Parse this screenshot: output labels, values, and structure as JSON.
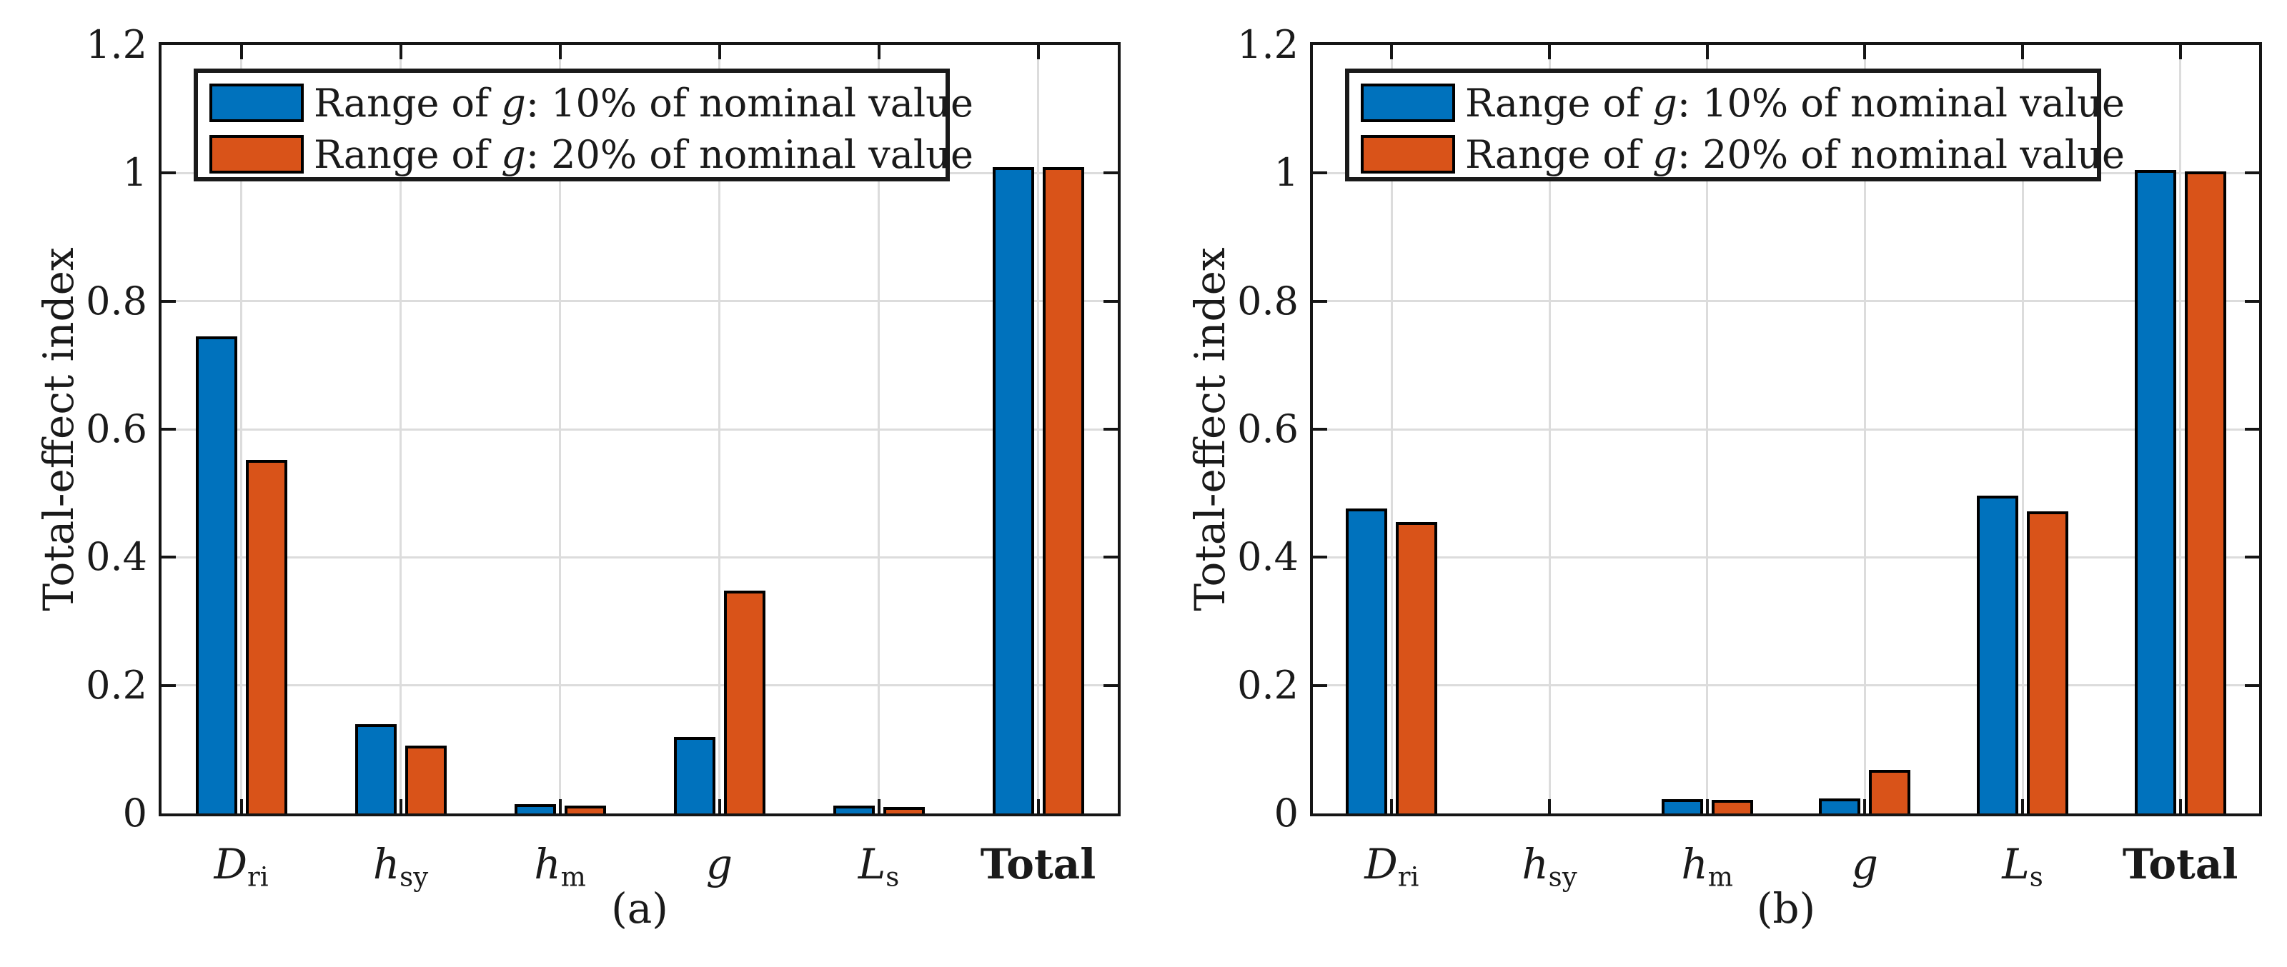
{
  "style": {
    "series_colors": [
      "#0072BD",
      "#D95319"
    ],
    "grid_color": "#DCDCDC",
    "axis_color": "#151515",
    "text_color": "#1A1A1A",
    "background": "#FFFFFF"
  },
  "legend": {
    "items": [
      {
        "swatch_color": "#0072BD",
        "label": "Range of g: 10% of nominal value",
        "segments": [
          {
            "t": "Range of "
          },
          {
            "t": "g",
            "italic": true
          },
          {
            "t": ": 10% of nominal value"
          }
        ]
      },
      {
        "swatch_color": "#D95319",
        "label": "Range of g: 20% of nominal value",
        "segments": [
          {
            "t": "Range of "
          },
          {
            "t": "g",
            "italic": true
          },
          {
            "t": ": 20% of nominal value"
          }
        ]
      }
    ]
  },
  "category_labels": [
    {
      "plain": "D_ri",
      "segments": [
        {
          "t": "D",
          "italic": true
        },
        {
          "t": "ri",
          "sub": true
        }
      ]
    },
    {
      "plain": "h_sy",
      "segments": [
        {
          "t": "h",
          "italic": true
        },
        {
          "t": "sy",
          "sub": true
        }
      ]
    },
    {
      "plain": "h_m",
      "segments": [
        {
          "t": "h",
          "italic": true
        },
        {
          "t": "m",
          "sub": true
        }
      ]
    },
    {
      "plain": "g",
      "segments": [
        {
          "t": "g",
          "italic": true
        }
      ]
    },
    {
      "plain": "L_s",
      "segments": [
        {
          "t": "L",
          "italic": true
        },
        {
          "t": "s",
          "sub": true
        }
      ]
    },
    {
      "plain": "Total",
      "segments": [
        {
          "t": "Total",
          "bold": true
        }
      ]
    }
  ],
  "chart_data": [
    {
      "type": "bar",
      "panel_label": "(a)",
      "title": "",
      "ylabel": "Total-effect index",
      "xlabel": "",
      "categories": [
        "D_ri",
        "h_sy",
        "h_m",
        "g",
        "L_s",
        "Total"
      ],
      "series": [
        {
          "name": "Range of g: 10% of nominal value",
          "color": "#0072BD",
          "values": [
            0.74,
            0.135,
            0.01,
            0.115,
            0.008,
            1.005
          ]
        },
        {
          "name": "Range of g: 20% of nominal value",
          "color": "#D95319",
          "values": [
            0.548,
            0.102,
            0.008,
            0.343,
            0.006,
            1.005
          ]
        }
      ],
      "ylim": [
        0,
        1.2
      ],
      "yticks": [
        0,
        0.2,
        0.4,
        0.6,
        0.8,
        1.0,
        1.2
      ],
      "ytick_labels": [
        "0",
        "0.2",
        "0.4",
        "0.6",
        "0.8",
        "1",
        "1.2"
      ],
      "grid": true,
      "legend_position": "top-left"
    },
    {
      "type": "bar",
      "panel_label": "(b)",
      "title": "",
      "ylabel": "Total-effect index",
      "xlabel": "",
      "categories": [
        "D_ri",
        "h_sy",
        "h_m",
        "g",
        "L_s",
        "Total"
      ],
      "series": [
        {
          "name": "Range of g: 10% of nominal value",
          "color": "#0072BD",
          "values": [
            0.472,
            0.0,
            0.018,
            0.019,
            0.492,
            1.0
          ]
        },
        {
          "name": "Range of g: 20% of nominal value",
          "color": "#D95319",
          "values": [
            0.45,
            0.0,
            0.017,
            0.064,
            0.467,
            0.998
          ]
        }
      ],
      "ylim": [
        0,
        1.2
      ],
      "yticks": [
        0,
        0.2,
        0.4,
        0.6,
        0.8,
        1.0,
        1.2
      ],
      "ytick_labels": [
        "0",
        "0.2",
        "0.4",
        "0.6",
        "0.8",
        "1",
        "1.2"
      ],
      "grid": true,
      "legend_position": "top-left"
    }
  ]
}
